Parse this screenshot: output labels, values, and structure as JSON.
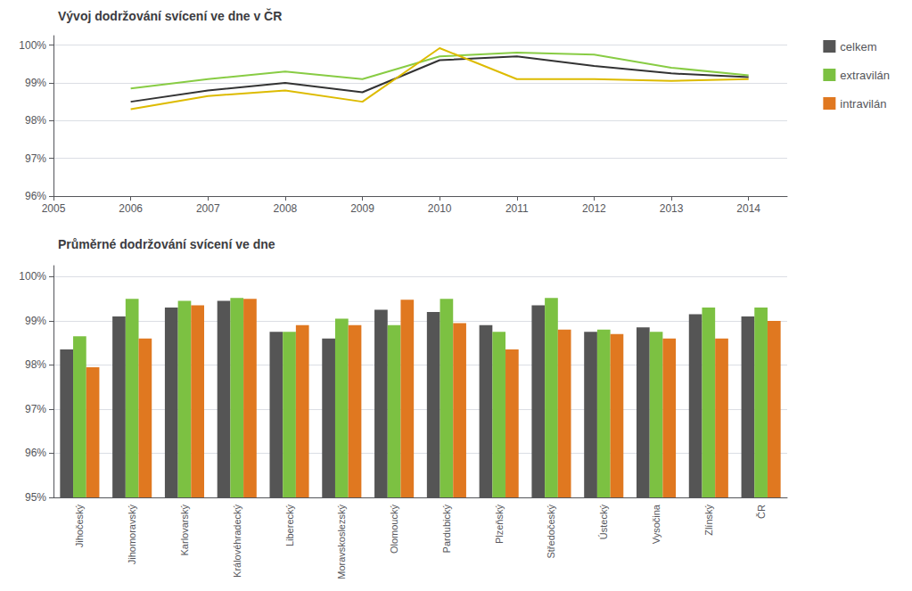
{
  "chart_data": [
    {
      "type": "line",
      "title": "Vývoj dodržování svícení ve dne v ČR",
      "x": [
        2006,
        2007,
        2008,
        2009,
        2010,
        2011,
        2012,
        2013,
        2014
      ],
      "xlim": [
        2005,
        2014.5
      ],
      "xticks": [
        2005,
        2006,
        2007,
        2008,
        2009,
        2010,
        2011,
        2012,
        2013,
        2014
      ],
      "ylim": [
        96.0,
        100.25
      ],
      "yticks": [
        {
          "value": 96,
          "label": "96%"
        },
        {
          "value": 97,
          "label": "97%"
        },
        {
          "value": 98,
          "label": "98%"
        },
        {
          "value": 99,
          "label": "99%"
        },
        {
          "value": 100,
          "label": "100%"
        }
      ],
      "grid": true,
      "series": [
        {
          "name": "celkem",
          "color": "#333333",
          "values": [
            98.5,
            98.8,
            99.0,
            98.75,
            99.6,
            99.7,
            99.45,
            99.25,
            99.15
          ]
        },
        {
          "name": "extravilán",
          "color": "#88cc44",
          "values": [
            98.85,
            99.1,
            99.3,
            99.1,
            99.7,
            99.8,
            99.75,
            99.4,
            99.2
          ]
        },
        {
          "name": "intravilán",
          "color": "#ddbb00",
          "values": [
            98.3,
            98.65,
            98.8,
            98.5,
            99.92,
            99.1,
            99.1,
            99.05,
            99.1
          ]
        }
      ]
    },
    {
      "type": "bar",
      "title": "Průměrné dodržování svícení ve dne",
      "categories": [
        "Jihočeský",
        "Jihomoravský",
        "Karlovarský",
        "Královéhradecký",
        "Liberecký",
        "Moravskoslezský",
        "Olomoucký",
        "Pardubický",
        "Plzeňský",
        "Středočeský",
        "Ústecký",
        "Vysočina",
        "Zlínský",
        "ČR"
      ],
      "ylim": [
        95.0,
        100.25
      ],
      "yticks": [
        {
          "value": 95,
          "label": "95%"
        },
        {
          "value": 96,
          "label": "96%"
        },
        {
          "value": 97,
          "label": "97%"
        },
        {
          "value": 98,
          "label": "98%"
        },
        {
          "value": 99,
          "label": "99%"
        },
        {
          "value": 100,
          "label": "100%"
        }
      ],
      "grid": true,
      "legend": "upper right",
      "series": [
        {
          "name": "celkem",
          "color": "#555555",
          "values": [
            98.35,
            99.1,
            99.3,
            99.45,
            98.75,
            98.6,
            99.25,
            99.2,
            98.9,
            99.35,
            98.75,
            98.85,
            99.15,
            99.1
          ]
        },
        {
          "name": "extravilán",
          "color": "#7cc142",
          "values": [
            98.65,
            99.5,
            99.45,
            99.52,
            98.75,
            99.05,
            98.9,
            99.5,
            98.75,
            99.52,
            98.8,
            98.75,
            99.3,
            99.3
          ]
        },
        {
          "name": "intravilán",
          "color": "#e07820",
          "values": [
            97.95,
            98.6,
            99.35,
            99.5,
            98.9,
            98.9,
            99.48,
            98.95,
            98.35,
            98.8,
            98.7,
            98.6,
            98.6,
            99.0
          ]
        }
      ]
    }
  ]
}
